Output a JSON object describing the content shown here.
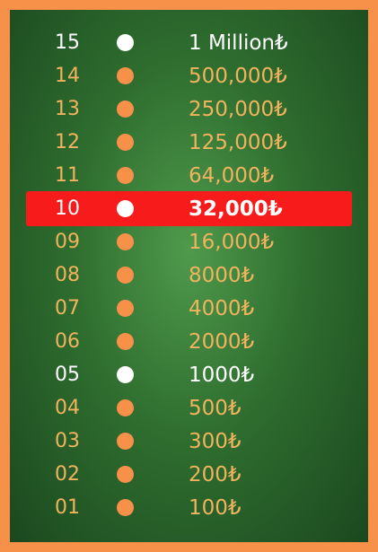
{
  "ladder": {
    "current_level": "10",
    "colors": {
      "frame": "#F7914A",
      "board": "#2f6e2f",
      "highlight": "#F81B1B",
      "regular_text": "#F2B35E",
      "milestone_text": "#FFFFFF"
    },
    "rows": [
      {
        "level": "15",
        "prize": "1 Million₺",
        "type": "milestone"
      },
      {
        "level": "14",
        "prize": "500,000₺",
        "type": "regular"
      },
      {
        "level": "13",
        "prize": "250,000₺",
        "type": "regular"
      },
      {
        "level": "12",
        "prize": "125,000₺",
        "type": "regular"
      },
      {
        "level": "11",
        "prize": "64,000₺",
        "type": "regular"
      },
      {
        "level": "10",
        "prize": "32,000₺",
        "type": "current"
      },
      {
        "level": "09",
        "prize": "16,000₺",
        "type": "regular"
      },
      {
        "level": "08",
        "prize": "8000₺",
        "type": "regular"
      },
      {
        "level": "07",
        "prize": "4000₺",
        "type": "regular"
      },
      {
        "level": "06",
        "prize": "2000₺",
        "type": "regular"
      },
      {
        "level": "05",
        "prize": "1000₺",
        "type": "milestone"
      },
      {
        "level": "04",
        "prize": "500₺",
        "type": "regular"
      },
      {
        "level": "03",
        "prize": "300₺",
        "type": "regular"
      },
      {
        "level": "02",
        "prize": "200₺",
        "type": "regular"
      },
      {
        "level": "01",
        "prize": "100₺",
        "type": "regular"
      }
    ]
  }
}
